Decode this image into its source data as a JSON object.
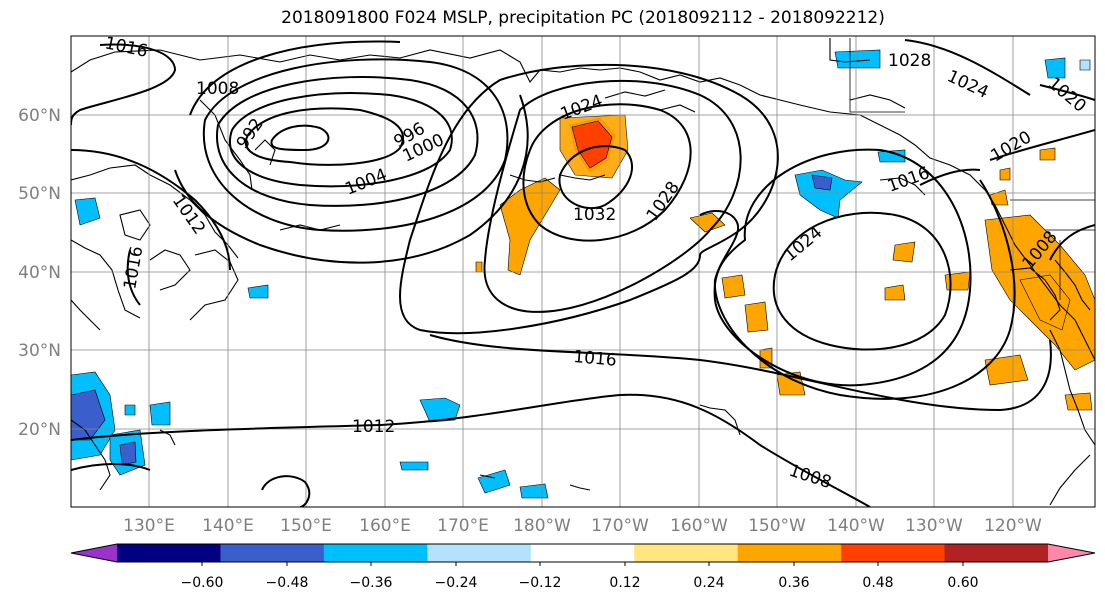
{
  "title": "2018091800 F024 MSLP, precipitation PC (2018092112 - 2018092212)",
  "map": {
    "lat_labels": [
      "60°N",
      "50°N",
      "40°N",
      "30°N",
      "20°N"
    ],
    "lon_labels": [
      "130°E",
      "140°E",
      "150°E",
      "160°E",
      "170°E",
      "180°W",
      "170°W",
      "160°W",
      "150°W",
      "140°W",
      "130°W",
      "120°W"
    ],
    "gridlines": true,
    "isobar_labels": [
      "1016",
      "1008",
      "992",
      "996",
      "1000",
      "1004",
      "1012",
      "1016",
      "1024",
      "1032",
      "1028",
      "1028",
      "1024",
      "1020",
      "1020",
      "1016",
      "1024",
      "1008",
      "1016",
      "1012",
      "1008"
    ]
  },
  "colorbar": {
    "tick_labels": [
      "−0.60",
      "−0.48",
      "−0.36",
      "−0.24",
      "−0.12",
      "0.12",
      "0.24",
      "0.36",
      "0.48",
      "0.60"
    ],
    "colors": [
      "#9933cc",
      "#000080",
      "#3a5fcd",
      "#00bfff",
      "#b3e2fd",
      "#ffffff",
      "#ffe680",
      "#ffa500",
      "#ff4000",
      "#b22222",
      "#ff88aa"
    ]
  },
  "colors": {
    "contour": "#000000",
    "grid": "#888888",
    "tick_label": "#7f7f7f"
  }
}
